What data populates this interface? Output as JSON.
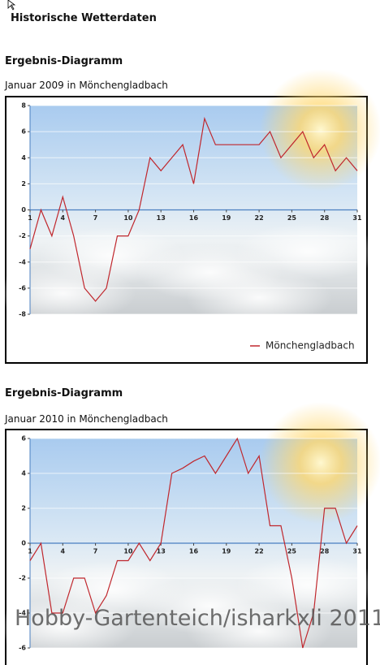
{
  "page_title": "Historische Wetterdaten",
  "watermark": "Hobby-Gartenteich/isharkxli 2011",
  "chart_data": [
    {
      "type": "line",
      "title": "Ergebnis-Diagramm",
      "subtitle": "Januar 2009 in Mönchengladbach",
      "x": [
        1,
        2,
        3,
        4,
        5,
        6,
        7,
        8,
        9,
        10,
        11,
        12,
        13,
        14,
        15,
        16,
        17,
        18,
        19,
        20,
        21,
        22,
        23,
        24,
        25,
        26,
        27,
        28,
        29,
        30,
        31
      ],
      "xlim": [
        1,
        31
      ],
      "xticks": [
        1,
        4,
        7,
        10,
        13,
        16,
        19,
        22,
        25,
        28,
        31
      ],
      "ylim": [
        -8,
        8
      ],
      "yticks": [
        -8,
        -6,
        -4,
        -2,
        0,
        2,
        4,
        6,
        8
      ],
      "grid": true,
      "legend": true,
      "series": [
        {
          "name": "Mönchengladbach",
          "color": "#c0272d",
          "values": [
            -3,
            0,
            -2,
            1,
            -2,
            -6,
            -7,
            -6,
            -2,
            -2,
            0,
            4,
            3,
            4,
            5,
            2,
            7,
            5,
            5,
            5,
            5,
            5,
            6,
            4,
            5,
            6,
            4,
            5,
            3,
            4,
            3
          ]
        }
      ]
    },
    {
      "type": "line",
      "title": "Ergebnis-Diagramm",
      "subtitle": "Januar 2010 in Mönchengladbach",
      "x": [
        1,
        2,
        3,
        4,
        5,
        6,
        7,
        8,
        9,
        10,
        11,
        12,
        13,
        14,
        15,
        16,
        17,
        18,
        19,
        20,
        21,
        22,
        23,
        24,
        25,
        26,
        27,
        28,
        29,
        30,
        31
      ],
      "xlim": [
        1,
        31
      ],
      "xticks": [
        1,
        4,
        7,
        10,
        13,
        16,
        19,
        22,
        25,
        28,
        31
      ],
      "ylim": [
        -6,
        6
      ],
      "yticks": [
        -6,
        -4,
        -2,
        0,
        2,
        4,
        6
      ],
      "grid": true,
      "legend": false,
      "series": [
        {
          "color": "#c0272d",
          "values": [
            -1,
            0,
            -4,
            -4,
            -2,
            -2,
            -4,
            -3,
            -1,
            -1,
            0,
            -1,
            0,
            4,
            4.3,
            4.7,
            5,
            4,
            5,
            6,
            4,
            5,
            1,
            1,
            -2,
            -6,
            -4,
            2,
            2,
            0,
            1
          ]
        }
      ]
    }
  ]
}
